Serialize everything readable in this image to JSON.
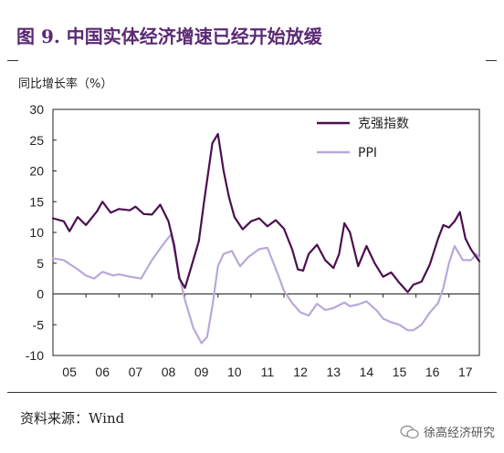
{
  "title": "图 9. 中国实体经济增速已经开始放缓",
  "source": "资料来源：Wind",
  "watermark": "徐高经济研究",
  "chart_data": {
    "type": "line",
    "ylabel": "同比增长率（%）",
    "ylim": [
      -10,
      30
    ],
    "yticks": [
      30,
      25,
      20,
      15,
      10,
      5,
      0,
      -5,
      -10
    ],
    "xlim": [
      2005.0,
      2017.92
    ],
    "xticks": [
      "05",
      "06",
      "07",
      "08",
      "09",
      "10",
      "11",
      "12",
      "13",
      "14",
      "15",
      "16",
      "17"
    ],
    "legend_position": "top-right",
    "series": [
      {
        "name": "克强指数",
        "color": "#4b0f4f",
        "points": [
          [
            2005.0,
            12.3
          ],
          [
            2005.33,
            11.8
          ],
          [
            2005.5,
            10.2
          ],
          [
            2005.75,
            12.5
          ],
          [
            2006.0,
            11.2
          ],
          [
            2006.33,
            13.4
          ],
          [
            2006.5,
            15.0
          ],
          [
            2006.75,
            13.2
          ],
          [
            2007.0,
            13.8
          ],
          [
            2007.33,
            13.6
          ],
          [
            2007.5,
            14.2
          ],
          [
            2007.75,
            13.0
          ],
          [
            2008.0,
            12.9
          ],
          [
            2008.25,
            14.5
          ],
          [
            2008.5,
            11.8
          ],
          [
            2008.67,
            8.0
          ],
          [
            2008.83,
            2.5
          ],
          [
            2009.0,
            1.0
          ],
          [
            2009.17,
            4.0
          ],
          [
            2009.42,
            8.6
          ],
          [
            2009.58,
            15.0
          ],
          [
            2009.83,
            24.5
          ],
          [
            2010.0,
            26.0
          ],
          [
            2010.17,
            20.0
          ],
          [
            2010.33,
            15.8
          ],
          [
            2010.5,
            12.5
          ],
          [
            2010.75,
            10.5
          ],
          [
            2011.0,
            11.8
          ],
          [
            2011.25,
            12.3
          ],
          [
            2011.5,
            11.0
          ],
          [
            2011.75,
            12.0
          ],
          [
            2012.0,
            10.6
          ],
          [
            2012.25,
            7.2
          ],
          [
            2012.42,
            4.0
          ],
          [
            2012.58,
            3.8
          ],
          [
            2012.75,
            6.5
          ],
          [
            2013.0,
            8.0
          ],
          [
            2013.25,
            5.5
          ],
          [
            2013.5,
            4.2
          ],
          [
            2013.67,
            6.5
          ],
          [
            2013.83,
            11.5
          ],
          [
            2014.0,
            10.0
          ],
          [
            2014.25,
            4.5
          ],
          [
            2014.5,
            7.8
          ],
          [
            2014.75,
            5.0
          ],
          [
            2015.0,
            2.8
          ],
          [
            2015.25,
            3.5
          ],
          [
            2015.5,
            1.8
          ],
          [
            2015.75,
            0.3
          ],
          [
            2015.92,
            1.5
          ],
          [
            2016.17,
            2.0
          ],
          [
            2016.42,
            4.8
          ],
          [
            2016.67,
            9.0
          ],
          [
            2016.83,
            11.2
          ],
          [
            2017.0,
            10.8
          ],
          [
            2017.17,
            11.8
          ],
          [
            2017.33,
            13.3
          ],
          [
            2017.5,
            9.0
          ],
          [
            2017.67,
            7.2
          ],
          [
            2017.92,
            5.3
          ]
        ]
      },
      {
        "name": "PPI",
        "color": "#b9a8d9",
        "points": [
          [
            2005.0,
            5.8
          ],
          [
            2005.33,
            5.5
          ],
          [
            2005.75,
            4.0
          ],
          [
            2006.0,
            3.0
          ],
          [
            2006.25,
            2.5
          ],
          [
            2006.5,
            3.6
          ],
          [
            2006.83,
            3.0
          ],
          [
            2007.0,
            3.2
          ],
          [
            2007.33,
            2.8
          ],
          [
            2007.67,
            2.5
          ],
          [
            2008.0,
            5.5
          ],
          [
            2008.33,
            8.0
          ],
          [
            2008.58,
            9.7
          ],
          [
            2008.83,
            3.0
          ],
          [
            2009.0,
            -1.0
          ],
          [
            2009.25,
            -5.5
          ],
          [
            2009.5,
            -8.0
          ],
          [
            2009.67,
            -7.0
          ],
          [
            2009.83,
            -2.0
          ],
          [
            2010.0,
            4.5
          ],
          [
            2010.17,
            6.5
          ],
          [
            2010.42,
            7.0
          ],
          [
            2010.67,
            4.5
          ],
          [
            2010.92,
            6.0
          ],
          [
            2011.25,
            7.3
          ],
          [
            2011.5,
            7.5
          ],
          [
            2011.83,
            3.0
          ],
          [
            2012.0,
            0.5
          ],
          [
            2012.25,
            -1.5
          ],
          [
            2012.5,
            -3.0
          ],
          [
            2012.75,
            -3.5
          ],
          [
            2013.0,
            -1.6
          ],
          [
            2013.25,
            -2.6
          ],
          [
            2013.5,
            -2.3
          ],
          [
            2013.83,
            -1.4
          ],
          [
            2014.0,
            -2.0
          ],
          [
            2014.25,
            -1.7
          ],
          [
            2014.5,
            -1.2
          ],
          [
            2014.83,
            -2.8
          ],
          [
            2015.0,
            -4.0
          ],
          [
            2015.25,
            -4.6
          ],
          [
            2015.5,
            -5.0
          ],
          [
            2015.75,
            -5.9
          ],
          [
            2015.92,
            -5.9
          ],
          [
            2016.17,
            -5.0
          ],
          [
            2016.42,
            -3.0
          ],
          [
            2016.67,
            -1.5
          ],
          [
            2016.83,
            1.0
          ],
          [
            2017.0,
            5.0
          ],
          [
            2017.17,
            7.8
          ],
          [
            2017.42,
            5.5
          ],
          [
            2017.67,
            5.5
          ],
          [
            2017.83,
            6.5
          ],
          [
            2017.92,
            5.8
          ]
        ]
      }
    ]
  }
}
